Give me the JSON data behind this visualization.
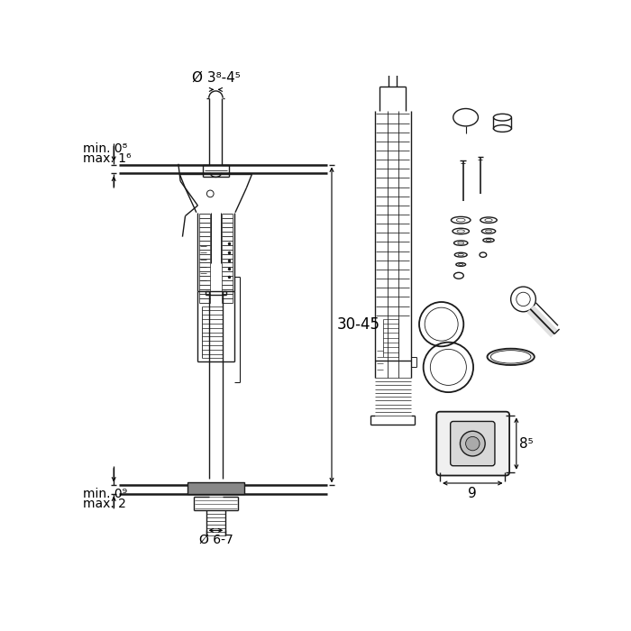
{
  "bg_color": "#ffffff",
  "lc": "#1a1a1a",
  "lw": 1.0,
  "annotation_fontsize": 10,
  "dim_top_label": "Ø 3⁸-4⁵",
  "dim_left_top_line1": "min. 0⁸",
  "dim_left_top_line2": "max. 1⁶",
  "dim_height_label": "30-45",
  "dim_bottom_label": "Ø 6-7",
  "dim_bottom_left_line1": "min. 0⁹",
  "dim_bottom_left_line2": "max. 2",
  "dim_right_w": "9",
  "dim_right_h": "8⁵"
}
